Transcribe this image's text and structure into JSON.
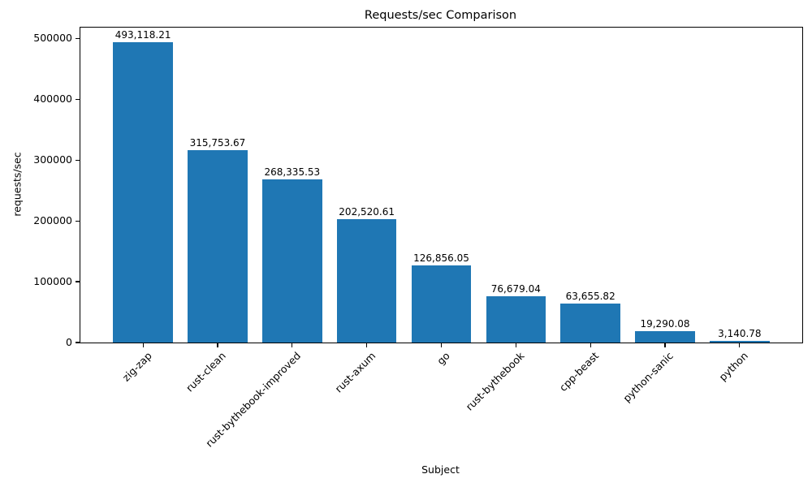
{
  "chart_data": {
    "type": "bar",
    "title": "Requests/sec Comparison",
    "xlabel": "Subject",
    "ylabel": "requests/sec",
    "categories": [
      "zig-zap",
      "rust-clean",
      "rust-bythebook-improved",
      "rust-axum",
      "go",
      "rust-bythebook",
      "cpp-beast",
      "python-sanic",
      "python"
    ],
    "values": [
      493118.21,
      315753.67,
      268335.53,
      202520.61,
      126856.05,
      76679.04,
      63655.82,
      19290.08,
      3140.78
    ],
    "value_labels": [
      "493,118.21",
      "315,753.67",
      "268,335.53",
      "202,520.61",
      "126,856.05",
      "76,679.04",
      "63,655.82",
      "19,290.08",
      "3,140.78"
    ],
    "yticks": [
      0,
      100000,
      200000,
      300000,
      400000,
      500000
    ],
    "ytick_labels": [
      "0",
      "100000",
      "200000",
      "300000",
      "400000",
      "500000"
    ],
    "ylim": [
      0,
      517774
    ],
    "xtick_rotation_deg": 45,
    "bar_color": "#1f77b4",
    "bar_rel_width": 0.8,
    "grid": false,
    "legend_position": "none"
  }
}
